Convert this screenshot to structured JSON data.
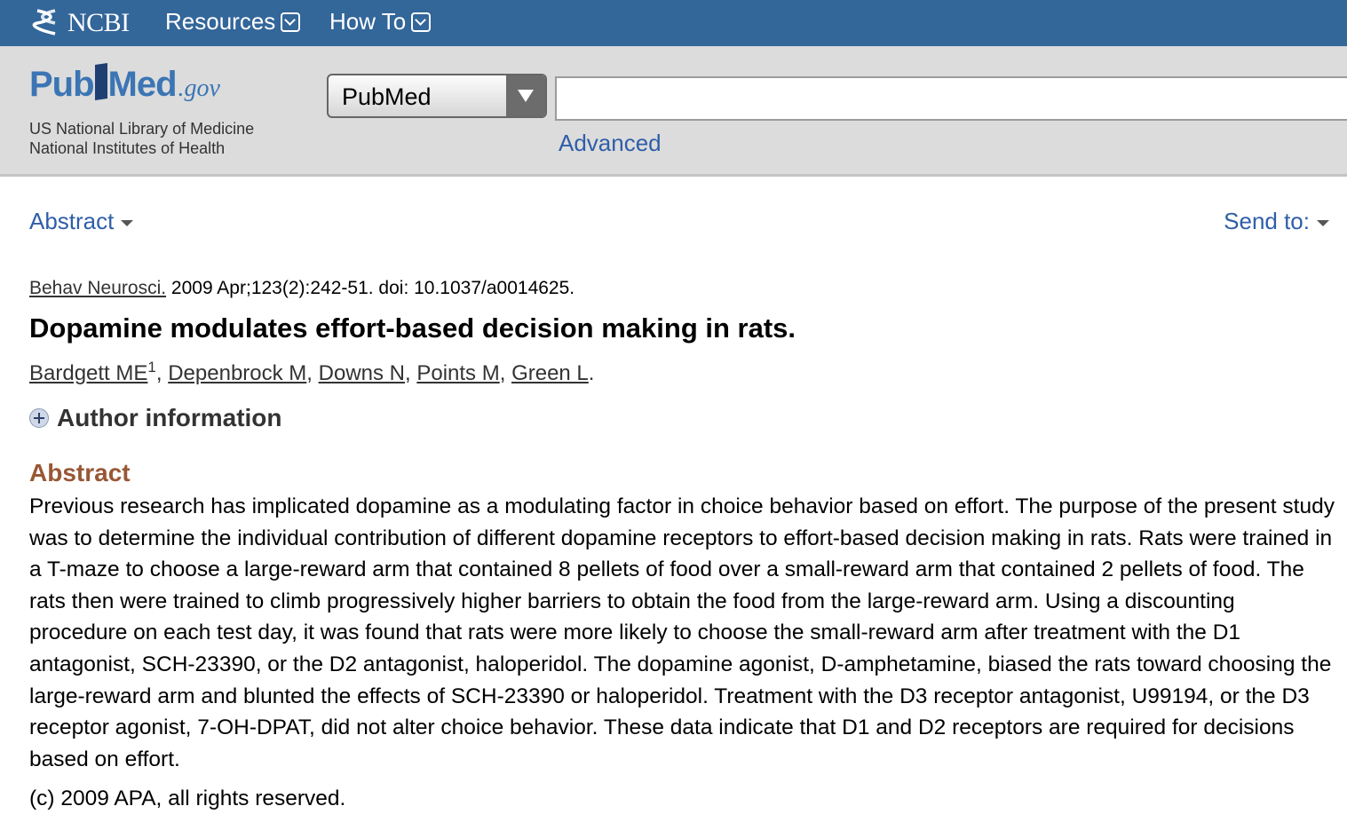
{
  "ncbi_bar": {
    "logo_text": "NCBI",
    "nav": [
      {
        "label": "Resources"
      },
      {
        "label": "How To"
      }
    ]
  },
  "header": {
    "logo": {
      "pub": "Pub",
      "med": "Med",
      "gov": ".gov"
    },
    "org_line1": "US National Library of Medicine",
    "org_line2": "National Institutes of Health",
    "database_select": "PubMed",
    "search_value": "",
    "advanced_link": "Advanced"
  },
  "toolbar": {
    "format_label": "Abstract",
    "send_to_label": "Send to:"
  },
  "article": {
    "journal": "Behav Neurosci.",
    "citation": " 2009 Apr;123(2):242-51. doi: 10.1037/a0014625.",
    "title": "Dopamine modulates effort-based decision making in rats.",
    "authors": [
      {
        "name": "Bardgett ME",
        "sup": "1"
      },
      {
        "name": "Depenbrock M"
      },
      {
        "name": "Downs N"
      },
      {
        "name": "Points M"
      },
      {
        "name": "Green L"
      }
    ],
    "author_info_label": "Author information",
    "abstract_heading": "Abstract",
    "abstract_text": "Previous research has implicated dopamine as a modulating factor in choice behavior based on effort. The purpose of the present study was to determine the individual contribution of different dopamine receptors to effort-based decision making in rats. Rats were trained in a T-maze to choose a large-reward arm that contained 8 pellets of food over a small-reward arm that contained 2 pellets of food. The rats then were trained to climb progressively higher barriers to obtain the food from the large-reward arm. Using a discounting procedure on each test day, it was found that rats were more likely to choose the small-reward arm after treatment with the D1 antagonist, SCH-23390, or the D2 antagonist, haloperidol. The dopamine agonist, D-amphetamine, biased the rats toward choosing the large-reward arm and blunted the effects of SCH-23390 or haloperidol. Treatment with the D3 receptor antagonist, U99194, or the D3 receptor agonist, 7-OH-DPAT, did not alter choice behavior. These data indicate that D1 and D2 receptors are required for decisions based on effort.",
    "copyright": "(c) 2009 APA, all rights reserved."
  }
}
